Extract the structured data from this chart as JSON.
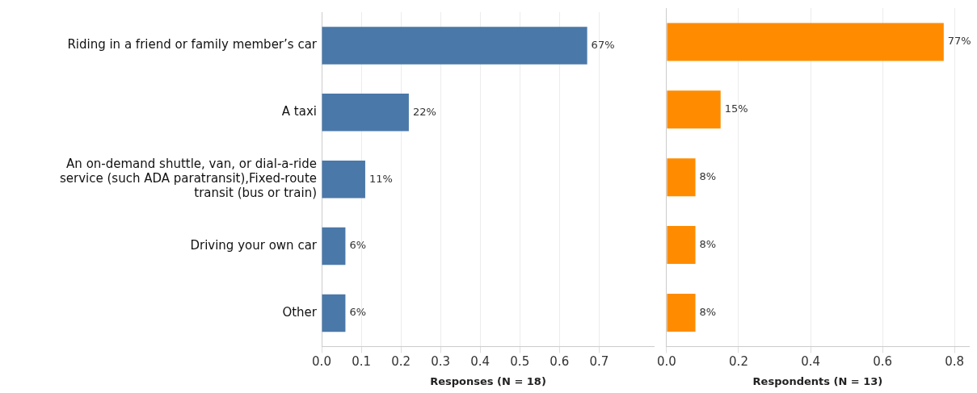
{
  "chart_data": [
    {
      "type": "bar",
      "orientation": "horizontal",
      "xlabel": "Responses (N = 18)",
      "categories": [
        "Riding in a friend or family member’s car",
        "A taxi",
        "An on-demand shuttle, van, or dial-a-ride service (such ADA paratransit),Fixed-route transit (bus or train)",
        "Driving your own car",
        "Other"
      ],
      "color": "#4a78a8",
      "values": [
        0.67,
        0.22,
        0.11,
        0.06,
        0.06
      ],
      "value_labels": [
        "67%",
        "22%",
        "11%",
        "6%",
        "6%"
      ],
      "xlim": [
        0,
        0.84
      ],
      "xticks": [
        {
          "value": 0,
          "label": "0.0"
        },
        0.1,
        0.2,
        0.3,
        0.4,
        0.5,
        0.6,
        0.7
      ],
      "grid": "x"
    },
    {
      "type": "bar",
      "orientation": "horizontal",
      "xlabel": "Respondents (N = 13)",
      "categories": [
        null,
        null,
        null,
        null,
        null
      ],
      "color": "#ff8c00",
      "values": [
        0.77,
        0.15,
        0.08,
        0.08,
        0.08
      ],
      "value_labels": [
        "77%",
        "15%",
        "8%",
        "8%",
        "8%"
      ],
      "xlim": [
        0,
        0.84
      ],
      "xticks": [
        {
          "value": 0,
          "label": "0.0"
        },
        0.2,
        0.4,
        0.6,
        0.8
      ],
      "grid": "x",
      "tick_labels": "x"
    }
  ]
}
